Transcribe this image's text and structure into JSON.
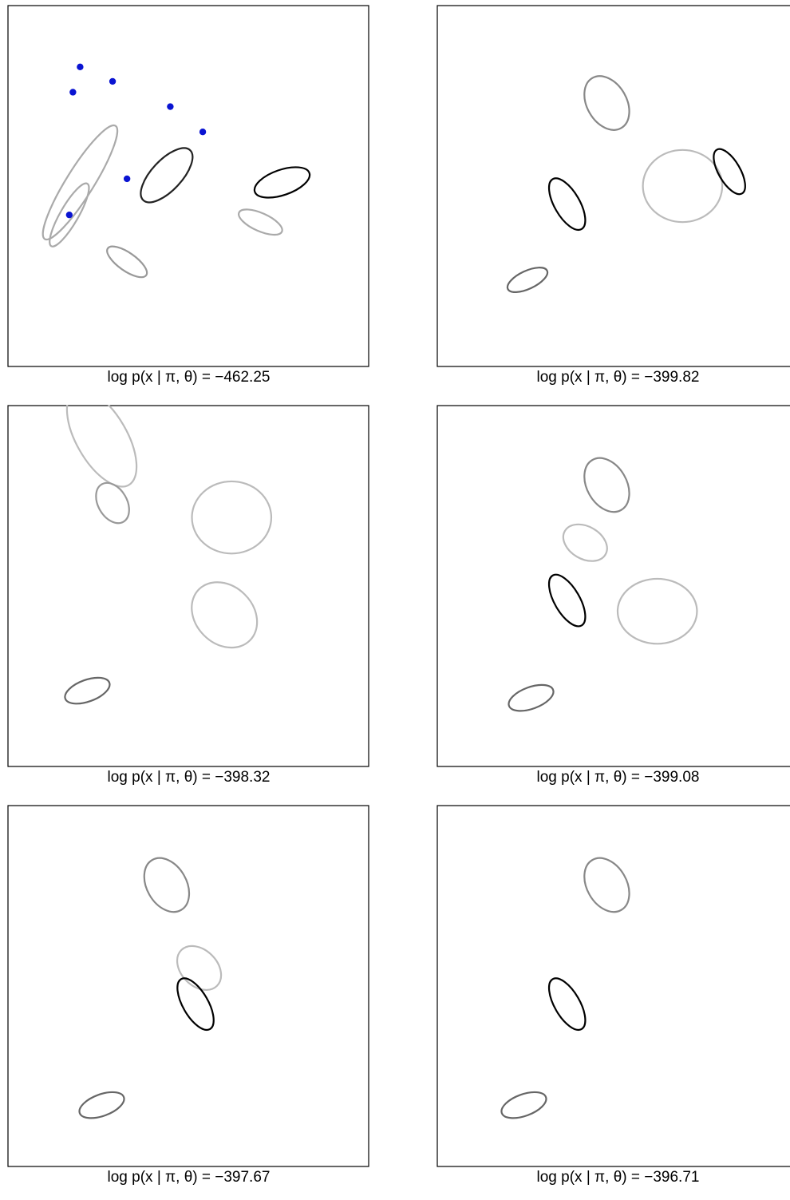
{
  "chart_data": [
    {
      "type": "scatter",
      "caption": "log p(x | π, θ) = −462.25",
      "means": [
        [
          0.2,
          0.17
        ],
        [
          0.18,
          0.24
        ],
        [
          0.45,
          0.28
        ],
        [
          0.54,
          0.35
        ],
        [
          0.29,
          0.21
        ],
        [
          0.17,
          0.58
        ],
        [
          0.33,
          0.48
        ]
      ],
      "ellipses": [
        {
          "cx": 0.17,
          "cy": 0.58,
          "rx": 0.1,
          "ry": 0.025,
          "rot": -60,
          "color": "#aaaaaa"
        },
        {
          "cx": 0.2,
          "cy": 0.49,
          "rx": 0.185,
          "ry": 0.038,
          "rot": -58,
          "color": "#aaaaaa"
        },
        {
          "cx": 0.44,
          "cy": 0.47,
          "rx": 0.095,
          "ry": 0.042,
          "rot": -47,
          "color": "#222222"
        },
        {
          "cx": 0.33,
          "cy": 0.71,
          "rx": 0.065,
          "ry": 0.025,
          "rot": 35,
          "color": "#999999"
        },
        {
          "cx": 0.7,
          "cy": 0.6,
          "rx": 0.065,
          "ry": 0.025,
          "rot": 24,
          "color": "#aaaaaa"
        },
        {
          "cx": 0.76,
          "cy": 0.49,
          "rx": 0.08,
          "ry": 0.035,
          "rot": -19,
          "color": "#000000"
        }
      ]
    },
    {
      "type": "scatter",
      "caption": "log p(x | π, θ) = −399.82",
      "means": [],
      "ellipses": [
        {
          "cx": 0.47,
          "cy": 0.27,
          "rx": 0.08,
          "ry": 0.055,
          "rot": 60,
          "color": "#888888"
        },
        {
          "cx": 0.25,
          "cy": 0.76,
          "rx": 0.06,
          "ry": 0.025,
          "rot": -25,
          "color": "#666666"
        },
        {
          "cx": 0.36,
          "cy": 0.55,
          "rx": 0.08,
          "ry": 0.035,
          "rot": 60,
          "color": "#000000"
        },
        {
          "cx": 0.68,
          "cy": 0.5,
          "rx": 0.11,
          "ry": 0.1,
          "rot": 0,
          "color": "#bbbbbb"
        },
        {
          "cx": 0.81,
          "cy": 0.46,
          "rx": 0.07,
          "ry": 0.03,
          "rot": 60,
          "color": "#000000"
        }
      ]
    },
    {
      "type": "scatter",
      "caption": "log p(x | π, θ) = −398.32",
      "means": [],
      "ellipses": [
        {
          "cx": 0.26,
          "cy": 0.09,
          "rx": 0.15,
          "ry": 0.07,
          "rot": 60,
          "color": "#bbbbbb"
        },
        {
          "cx": 0.29,
          "cy": 0.27,
          "rx": 0.06,
          "ry": 0.04,
          "rot": 60,
          "color": "#999999"
        },
        {
          "cx": 0.62,
          "cy": 0.31,
          "rx": 0.11,
          "ry": 0.1,
          "rot": 0,
          "color": "#bbbbbb"
        },
        {
          "cx": 0.6,
          "cy": 0.58,
          "rx": 0.1,
          "ry": 0.08,
          "rot": 45,
          "color": "#bbbbbb"
        },
        {
          "cx": 0.22,
          "cy": 0.79,
          "rx": 0.065,
          "ry": 0.03,
          "rot": -20,
          "color": "#666666"
        }
      ]
    },
    {
      "type": "scatter",
      "caption": "log p(x | π, θ) = −399.08",
      "means": [],
      "ellipses": [
        {
          "cx": 0.47,
          "cy": 0.22,
          "rx": 0.08,
          "ry": 0.055,
          "rot": 60,
          "color": "#888888"
        },
        {
          "cx": 0.41,
          "cy": 0.38,
          "rx": 0.065,
          "ry": 0.045,
          "rot": 30,
          "color": "#bbbbbb"
        },
        {
          "cx": 0.36,
          "cy": 0.54,
          "rx": 0.08,
          "ry": 0.035,
          "rot": 60,
          "color": "#000000"
        },
        {
          "cx": 0.61,
          "cy": 0.57,
          "rx": 0.11,
          "ry": 0.09,
          "rot": 0,
          "color": "#bbbbbb"
        },
        {
          "cx": 0.26,
          "cy": 0.81,
          "rx": 0.065,
          "ry": 0.03,
          "rot": -20,
          "color": "#666666"
        }
      ]
    },
    {
      "type": "scatter",
      "caption": "log p(x | π, θ) = −397.67",
      "means": [],
      "ellipses": [
        {
          "cx": 0.44,
          "cy": 0.22,
          "rx": 0.08,
          "ry": 0.055,
          "rot": 60,
          "color": "#888888"
        },
        {
          "cx": 0.53,
          "cy": 0.45,
          "rx": 0.07,
          "ry": 0.05,
          "rot": 45,
          "color": "#bbbbbb"
        },
        {
          "cx": 0.52,
          "cy": 0.55,
          "rx": 0.08,
          "ry": 0.035,
          "rot": 60,
          "color": "#000000"
        },
        {
          "cx": 0.26,
          "cy": 0.83,
          "rx": 0.065,
          "ry": 0.03,
          "rot": -20,
          "color": "#666666"
        }
      ]
    },
    {
      "type": "scatter",
      "caption": "log p(x | π, θ) = −396.71",
      "means": [],
      "ellipses": [
        {
          "cx": 0.47,
          "cy": 0.22,
          "rx": 0.08,
          "ry": 0.055,
          "rot": 60,
          "color": "#888888"
        },
        {
          "cx": 0.36,
          "cy": 0.55,
          "rx": 0.08,
          "ry": 0.035,
          "rot": 60,
          "color": "#000000"
        },
        {
          "cx": 0.24,
          "cy": 0.83,
          "rx": 0.065,
          "ry": 0.03,
          "rot": -20,
          "color": "#666666"
        }
      ]
    }
  ],
  "colors": {
    "points": "#000000",
    "means": "#0a14d2"
  }
}
